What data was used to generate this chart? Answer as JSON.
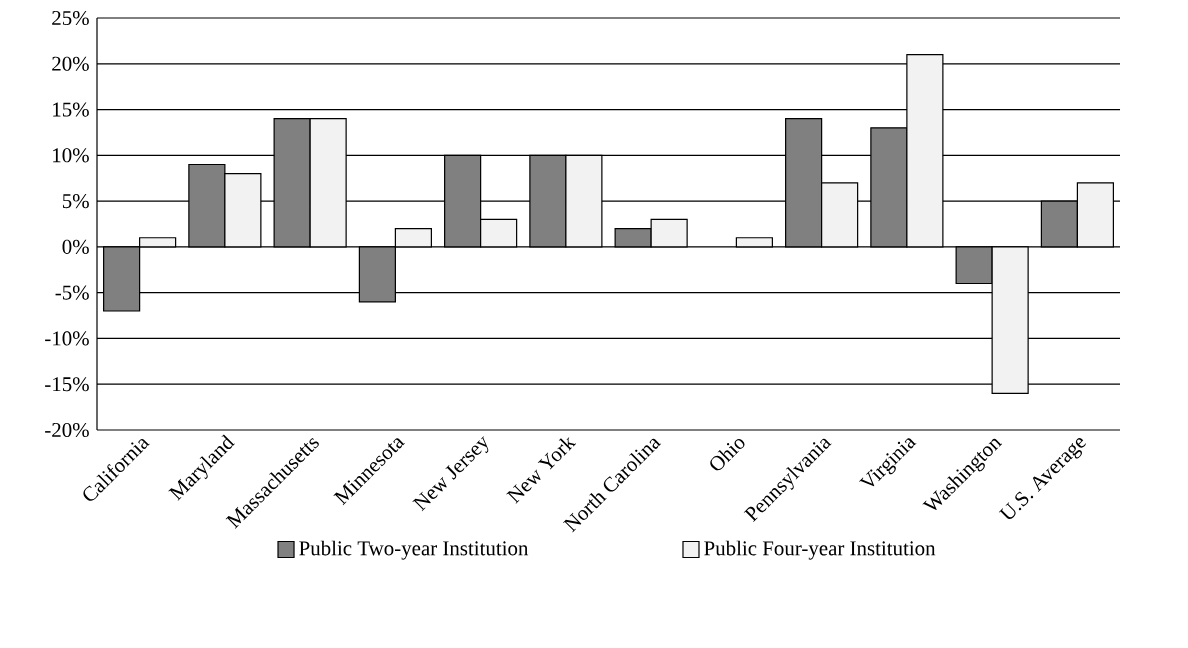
{
  "chart_data": {
    "type": "bar",
    "categories": [
      "California",
      "Maryland",
      "Massachusetts",
      "Minnesota",
      "New Jersey",
      "New York",
      "North Carolina",
      "Ohio",
      "Pennsylvania",
      "Virginia",
      "Washington",
      "U.S. Average"
    ],
    "series": [
      {
        "name": "Public Two-year Institution",
        "color": "#808080",
        "values": [
          -7,
          9,
          14,
          -6,
          10,
          10,
          2,
          null,
          14,
          13,
          -4,
          5
        ]
      },
      {
        "name": "Public Four-year Institution",
        "color": "#f2f2f2",
        "values": [
          1,
          8,
          14,
          2,
          3,
          10,
          3,
          1,
          7,
          21,
          -16,
          7
        ]
      }
    ],
    "ylim": [
      -20,
      25
    ],
    "yticks": [
      {
        "value": -20,
        "label": "-20%"
      },
      {
        "value": -15,
        "label": "-15%"
      },
      {
        "value": -10,
        "label": "-10%"
      },
      {
        "value": -5,
        "label": "-5%"
      },
      {
        "value": 0,
        "label": "0%"
      },
      {
        "value": 5,
        "label": "5%"
      },
      {
        "value": 10,
        "label": "10%"
      },
      {
        "value": 15,
        "label": "15%"
      },
      {
        "value": 20,
        "label": "20%"
      },
      {
        "value": 25,
        "label": "25%"
      }
    ],
    "grid": "y",
    "legend": "bottom"
  }
}
